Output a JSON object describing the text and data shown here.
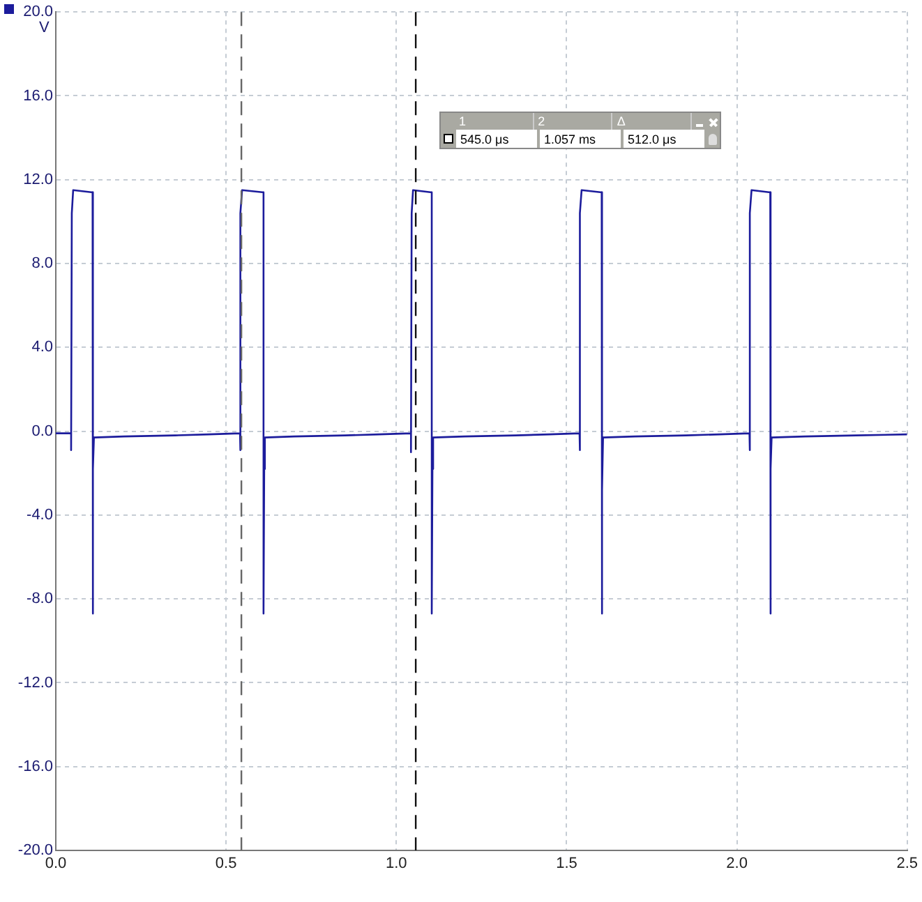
{
  "chart_data": {
    "type": "line",
    "ylabel": "V",
    "x": [
      0,
      0.045,
      0.045,
      0.047,
      0.051,
      0.104,
      0.108,
      0.108,
      0.11,
      0.112,
      0.2,
      0.35,
      0.45,
      0.541,
      0.541,
      0.543,
      0.547,
      0.606,
      0.61,
      0.61,
      0.612,
      0.614,
      0.7,
      0.85,
      0.95,
      1.043,
      1.043,
      1.045,
      1.049,
      1.1,
      1.104,
      1.104,
      1.106,
      1.108,
      1.2,
      1.35,
      1.45,
      1.538,
      1.538,
      1.54,
      1.544,
      1.599,
      1.603,
      1.603,
      1.605,
      1.607,
      1.7,
      1.85,
      1.95,
      2.037,
      2.037,
      2.039,
      2.043,
      2.094,
      2.098,
      2.098,
      2.1,
      2.102,
      2.2,
      2.35,
      2.5
    ],
    "series": [
      {
        "color": "#1c1c9c",
        "values": [
          -0.1,
          -0.1,
          -0.9,
          10.4,
          11.5,
          11.4,
          11.4,
          -8.7,
          -1.8,
          -0.3,
          -0.25,
          -0.2,
          -0.15,
          -0.1,
          -0.9,
          10.4,
          11.5,
          11.4,
          11.4,
          -8.7,
          -1.8,
          -0.3,
          -0.25,
          -0.2,
          -0.15,
          -0.1,
          -1.0,
          10.4,
          11.5,
          11.4,
          11.4,
          -8.7,
          -1.8,
          -0.3,
          -0.25,
          -0.2,
          -0.15,
          -0.1,
          -0.9,
          10.4,
          11.5,
          11.4,
          11.4,
          -8.7,
          -2.8,
          -0.3,
          -0.25,
          -0.2,
          -0.15,
          -0.1,
          -0.9,
          10.4,
          11.5,
          11.4,
          11.4,
          -8.7,
          -1.8,
          -0.3,
          -0.25,
          -0.2,
          -0.15
        ]
      }
    ],
    "xlim": [
      0,
      2.5
    ],
    "xticks": [
      {
        "value": 0,
        "label": "0.0"
      },
      {
        "value": 0.5,
        "label": "0.5"
      },
      {
        "value": 1,
        "label": "1.0"
      },
      {
        "value": 1.5,
        "label": "1.5"
      },
      {
        "value": 2,
        "label": "2.0"
      },
      {
        "value": 2.5,
        "label": "2.5"
      }
    ],
    "ylim": [
      -20,
      20
    ],
    "yticks": [
      {
        "value": -20,
        "label": "-20.0"
      },
      {
        "value": -16,
        "label": "-16.0"
      },
      {
        "value": -12,
        "label": "-12.0"
      },
      {
        "value": -8,
        "label": "-8.0"
      },
      {
        "value": -4,
        "label": "-4.0"
      },
      {
        "value": 0,
        "label": "0.0"
      },
      {
        "value": 4,
        "label": "4.0"
      },
      {
        "value": 8,
        "label": "8.0"
      },
      {
        "value": 12,
        "label": "12.0"
      },
      {
        "value": 16,
        "label": "16.0"
      },
      {
        "value": 20,
        "label": "20.0"
      }
    ],
    "ref_lines": [
      {
        "axis": "x",
        "value": 0.545,
        "color": "#666666",
        "line_style": "dashed"
      },
      {
        "axis": "x",
        "value": 1.057,
        "color": "#111111",
        "line_style": "dashed"
      }
    ],
    "annotations": [
      "1",
      "2",
      "Δ",
      "545.0 μs",
      "1.057 ms",
      "512.0 μs"
    ],
    "grid": true,
    "legend": false,
    "marker": "none",
    "line_style": "solid"
  }
}
